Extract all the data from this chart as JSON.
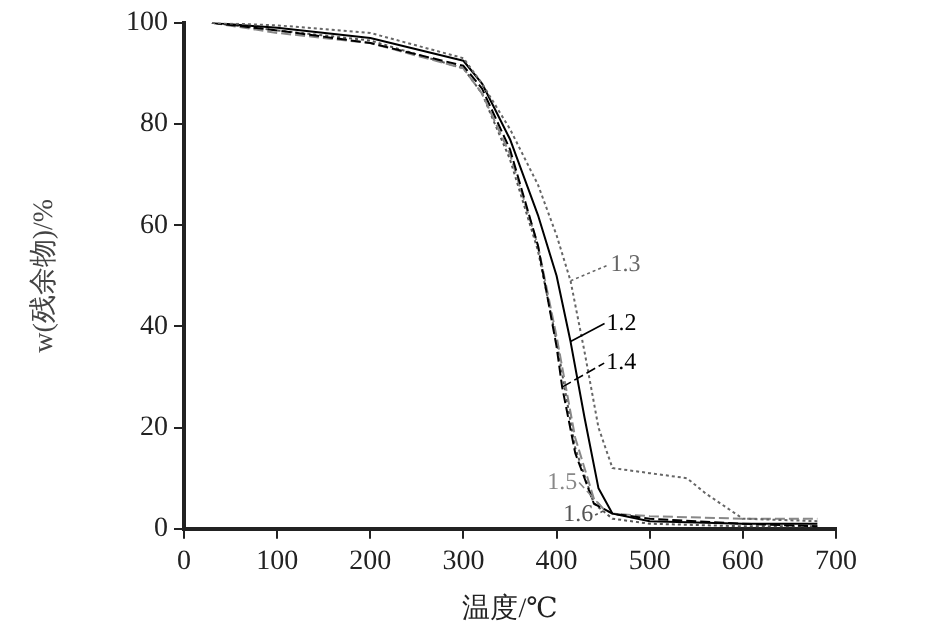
{
  "chart_data": {
    "type": "line",
    "xlabel": "温度/℃",
    "ylabel": "w(残余物)/%",
    "xlim": [
      0,
      700
    ],
    "xticks": [
      0,
      100,
      200,
      300,
      400,
      500,
      600,
      700
    ],
    "ylim": [
      0,
      100
    ],
    "yticks": [
      0,
      20,
      40,
      60,
      80,
      100
    ],
    "grid": false,
    "legend": "right",
    "marker": "none",
    "series": [
      {
        "name": "1.3",
        "color": "#666666",
        "line_style": "dotted",
        "x": [
          30,
          100,
          200,
          300,
          320,
          350,
          380,
          400,
          415,
          430,
          445,
          460,
          500,
          540,
          560,
          600,
          680
        ],
        "values": [
          100,
          99.5,
          98,
          93,
          88,
          79,
          68,
          58,
          49,
          35,
          20,
          12,
          11,
          10,
          7,
          2,
          1.5
        ]
      },
      {
        "name": "1.2",
        "color": "#000000",
        "line_style": "solid",
        "x": [
          30,
          100,
          200,
          300,
          320,
          350,
          380,
          400,
          415,
          430,
          445,
          460,
          500,
          600,
          680
        ],
        "values": [
          100,
          99,
          97,
          92.5,
          88,
          77,
          62,
          50,
          37,
          22,
          8,
          3,
          1.5,
          1,
          1
        ]
      },
      {
        "name": "1.4",
        "color": "#000000",
        "line_style": "dashed",
        "x": [
          30,
          100,
          200,
          300,
          320,
          350,
          380,
          400,
          406,
          420,
          440,
          460,
          500,
          600,
          680
        ],
        "values": [
          100,
          98.5,
          96,
          91.5,
          87,
          75,
          56,
          36,
          28,
          15,
          5,
          3,
          2,
          1,
          0.5
        ]
      },
      {
        "name": "1.5",
        "color": "#888888",
        "line_style": "dashed",
        "x": [
          30,
          100,
          200,
          300,
          320,
          350,
          380,
          400,
          420,
          440,
          450,
          460,
          500,
          600,
          680
        ],
        "values": [
          100,
          98,
          96,
          91,
          86,
          74,
          56,
          38,
          18,
          6,
          4,
          3,
          2.5,
          2,
          2
        ]
      },
      {
        "name": "1.6",
        "color": "#555555",
        "line_style": "dotted",
        "x": [
          30,
          100,
          200,
          300,
          320,
          350,
          380,
          400,
          420,
          440,
          450,
          460,
          500,
          600,
          680
        ],
        "values": [
          100,
          98.5,
          96.5,
          91,
          86,
          73,
          55,
          37,
          16,
          5,
          3.5,
          2,
          1,
          0.5,
          0.5
        ]
      }
    ]
  }
}
